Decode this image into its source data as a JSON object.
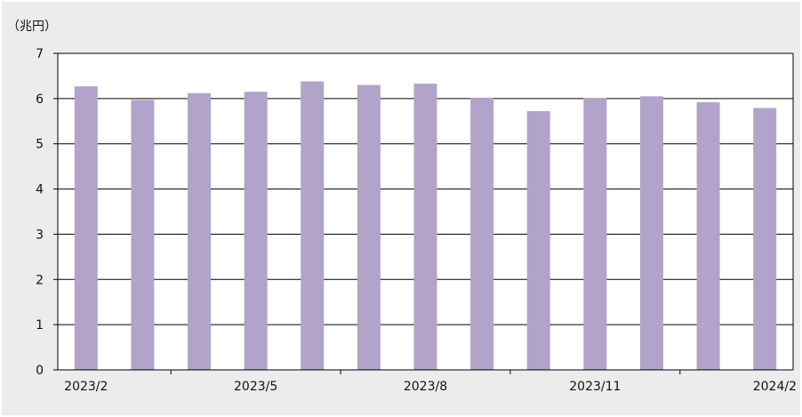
{
  "chart_data": {
    "type": "bar",
    "unit_label": "（兆円）",
    "categories": [
      "2023/2",
      "2023/3",
      "2023/4",
      "2023/5",
      "2023/6",
      "2023/7",
      "2023/8",
      "2023/9",
      "2023/10",
      "2023/11",
      "2023/12",
      "2024/1",
      "2024/2"
    ],
    "x_tick_labels": [
      "2023/2",
      "2023/5",
      "2023/8",
      "2023/11",
      "2024/2"
    ],
    "values": [
      6.27,
      5.97,
      6.12,
      6.15,
      6.38,
      6.3,
      6.33,
      6.02,
      5.72,
      6.01,
      6.05,
      5.92,
      5.79
    ],
    "ylim": [
      0,
      7
    ],
    "yticks": [
      0,
      1,
      2,
      3,
      4,
      5,
      6,
      7
    ],
    "grid": true,
    "colors": {
      "bar": "#b1a3c9",
      "background": "#ececec",
      "plot_background": "#ffffff"
    }
  }
}
